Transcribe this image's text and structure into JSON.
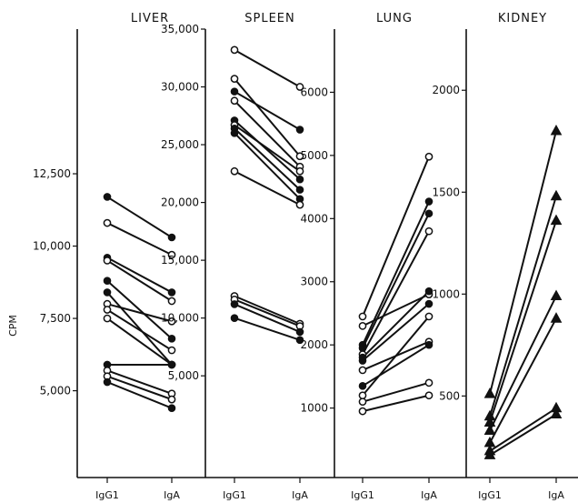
{
  "chart_data": [
    {
      "type": "line",
      "title": "LIVER",
      "ylabel": "CPM",
      "categories": [
        "IgG1",
        "IgA"
      ],
      "category_labels": [
        "IgG1",
        "IgA"
      ],
      "ylim": [
        2000,
        17500
      ],
      "yticks": [
        5000,
        7500,
        10000,
        12500
      ],
      "ytick_labels": [
        "5,000",
        "7,500",
        "10,000",
        "12,500"
      ],
      "series": [
        {
          "values": [
            11700,
            10300
          ],
          "marker": "filled-circle"
        },
        {
          "values": [
            10800,
            9700
          ],
          "marker": "open-circle"
        },
        {
          "values": [
            9600,
            8400
          ],
          "marker": "filled-circle"
        },
        {
          "values": [
            9500,
            8100
          ],
          "marker": "open-circle"
        },
        {
          "values": [
            8800,
            6800
          ],
          "marker": "filled-circle"
        },
        {
          "values": [
            8400,
            5900
          ],
          "marker": "filled-circle"
        },
        {
          "values": [
            8000,
            7400
          ],
          "marker": "open-circle"
        },
        {
          "values": [
            7800,
            6400
          ],
          "marker": "open-circle"
        },
        {
          "values": [
            7500,
            5900
          ],
          "marker": "open-circle"
        },
        {
          "values": [
            5900,
            5900
          ],
          "marker": "filled-circle"
        },
        {
          "values": [
            5700,
            4900
          ],
          "marker": "open-circle"
        },
        {
          "values": [
            5500,
            4700
          ],
          "marker": "open-circle"
        },
        {
          "values": [
            5300,
            4400
          ],
          "marker": "filled-circle"
        }
      ]
    },
    {
      "type": "line",
      "title": "SPLEEN",
      "categories": [
        "IgG1",
        "IgA"
      ],
      "category_labels": [
        "IgG1",
        "IgA"
      ],
      "ylim": [
        -3800,
        35000
      ],
      "yticks": [
        5000,
        10000,
        15000,
        20000,
        25000,
        30000,
        35000
      ],
      "ytick_labels": [
        "5,000",
        "10,000",
        "15,000",
        "20,000",
        "25,000",
        "30,000",
        "35,000"
      ],
      "series": [
        {
          "values": [
            33200,
            30000
          ],
          "marker": "open-circle"
        },
        {
          "values": [
            30700,
            24000
          ],
          "marker": "open-circle"
        },
        {
          "values": [
            29600,
            26300
          ],
          "marker": "filled-circle"
        },
        {
          "values": [
            28800,
            23100
          ],
          "marker": "open-circle"
        },
        {
          "values": [
            27100,
            22000
          ],
          "marker": "filled-circle"
        },
        {
          "values": [
            26700,
            22700
          ],
          "marker": "open-circle"
        },
        {
          "values": [
            26400,
            21100
          ],
          "marker": "filled-circle"
        },
        {
          "values": [
            26000,
            20300
          ],
          "marker": "filled-circle"
        },
        {
          "values": [
            22700,
            19800
          ],
          "marker": "open-circle"
        },
        {
          "values": [
            11900,
            9500
          ],
          "marker": "open-circle"
        },
        {
          "values": [
            11600,
            9300
          ],
          "marker": "open-circle"
        },
        {
          "values": [
            11200,
            8800
          ],
          "marker": "filled-circle"
        },
        {
          "values": [
            10000,
            8100
          ],
          "marker": "filled-circle"
        }
      ]
    },
    {
      "type": "line",
      "title": "LUNG",
      "categories": [
        "IgG1",
        "IgA"
      ],
      "category_labels": [
        "IgG1",
        "IgA"
      ],
      "ylim": [
        -100,
        7000
      ],
      "yticks": [
        1000,
        2000,
        3000,
        4000,
        5000,
        6000
      ],
      "ytick_labels": [
        "1000",
        "2000",
        "3000",
        "4000",
        "5000",
        "6000"
      ],
      "series": [
        {
          "values": [
            2450,
            4980
          ],
          "marker": "open-circle"
        },
        {
          "values": [
            2300,
            2800
          ],
          "marker": "open-circle"
        },
        {
          "values": [
            2000,
            4270
          ],
          "marker": "filled-circle"
        },
        {
          "values": [
            1950,
            4080
          ],
          "marker": "filled-circle"
        },
        {
          "values": [
            1850,
            3800
          ],
          "marker": "open-circle"
        },
        {
          "values": [
            1800,
            2850
          ],
          "marker": "filled-circle"
        },
        {
          "values": [
            1750,
            2650
          ],
          "marker": "filled-circle"
        },
        {
          "values": [
            1600,
            2050
          ],
          "marker": "open-circle"
        },
        {
          "values": [
            1350,
            2000
          ],
          "marker": "filled-circle"
        },
        {
          "values": [
            1200,
            2450
          ],
          "marker": "open-circle"
        },
        {
          "values": [
            1100,
            1400
          ],
          "marker": "open-circle"
        },
        {
          "values": [
            950,
            1200
          ],
          "marker": "open-circle"
        }
      ]
    },
    {
      "type": "line",
      "title": "KIDNEY",
      "categories": [
        "IgG1",
        "IgA"
      ],
      "category_labels": [
        "IgG1",
        "IgA"
      ],
      "ylim": [
        100,
        2300
      ],
      "yticks": [
        500,
        1000,
        1500,
        2000
      ],
      "ytick_labels": [
        "500",
        "1000",
        "1500",
        "2000"
      ],
      "series": [
        {
          "values": [
            510,
            1800
          ],
          "marker": "filled-triangle"
        },
        {
          "values": [
            400,
            1480
          ],
          "marker": "filled-triangle"
        },
        {
          "values": [
            370,
            1360
          ],
          "marker": "filled-triangle"
        },
        {
          "values": [
            330,
            990
          ],
          "marker": "filled-triangle"
        },
        {
          "values": [
            270,
            880
          ],
          "marker": "filled-triangle"
        },
        {
          "values": [
            230,
            440
          ],
          "marker": "filled-triangle"
        },
        {
          "values": [
            210,
            410
          ],
          "marker": "filled-triangle"
        }
      ]
    }
  ]
}
